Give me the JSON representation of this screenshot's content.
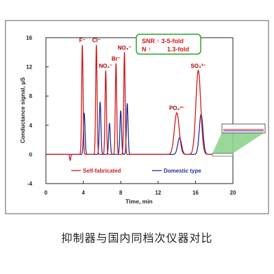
{
  "chart_data": {
    "type": "line",
    "xlabel": "Time, min",
    "ylabel": "Conductance signal, μS",
    "xlim": [
      0,
      20
    ],
    "ylim": [
      -4,
      16
    ],
    "xticks": [
      "0",
      "4",
      "8",
      "12",
      "16",
      "20"
    ],
    "yticks": [
      "-4",
      "0",
      "4",
      "8",
      "12",
      "16"
    ],
    "grid": false,
    "legend_position": "bottom",
    "series": [
      {
        "name": "Self-fabricated",
        "color": "#d01818",
        "peaks": [
          {
            "label": "F⁻",
            "t": 3.9,
            "height": 15.0
          },
          {
            "label": "Cl⁻",
            "t": 5.4,
            "height": 15.0
          },
          {
            "label": "NO₂⁻",
            "t": 6.4,
            "height": 11.5
          },
          {
            "label": "Br⁻",
            "t": 7.5,
            "height": 12.5
          },
          {
            "label": "NO₃⁻",
            "t": 8.4,
            "height": 14.0
          },
          {
            "label": "PO₄³⁻",
            "t": 14.0,
            "height": 5.7
          },
          {
            "label": "SO₄²⁻",
            "t": 16.3,
            "height": 11.5
          }
        ],
        "baseline_dip": {
          "t": 2.6,
          "value": -0.8
        }
      },
      {
        "name": "Domestic type",
        "color": "#1f2d9c",
        "peaks": [
          {
            "label": "F⁻",
            "t": 4.1,
            "height": 5.7
          },
          {
            "label": "Cl⁻",
            "t": 5.8,
            "height": 7.2
          },
          {
            "label": "NO₂⁻",
            "t": 6.8,
            "height": 4.3
          },
          {
            "label": "Br⁻",
            "t": 8.0,
            "height": 6.0
          },
          {
            "label": "NO₃⁻",
            "t": 8.7,
            "height": 7.0
          },
          {
            "label": "PO₄³⁻",
            "t": 14.3,
            "height": 2.3
          },
          {
            "label": "SO₄²⁻",
            "t": 16.6,
            "height": 5.5
          }
        ]
      }
    ],
    "annotation": {
      "line1": "SNR ↑ 3-5-fold",
      "line2_left": "N ↑",
      "line2_right": "1.3-fold"
    }
  },
  "caption": "抑制器与国内同档次仪器对比",
  "colors": {
    "red_series": "#d01818",
    "blue_series": "#1f2d9c",
    "annotation_border": "#2aa02a",
    "inset_fill": "#8fd48f"
  }
}
